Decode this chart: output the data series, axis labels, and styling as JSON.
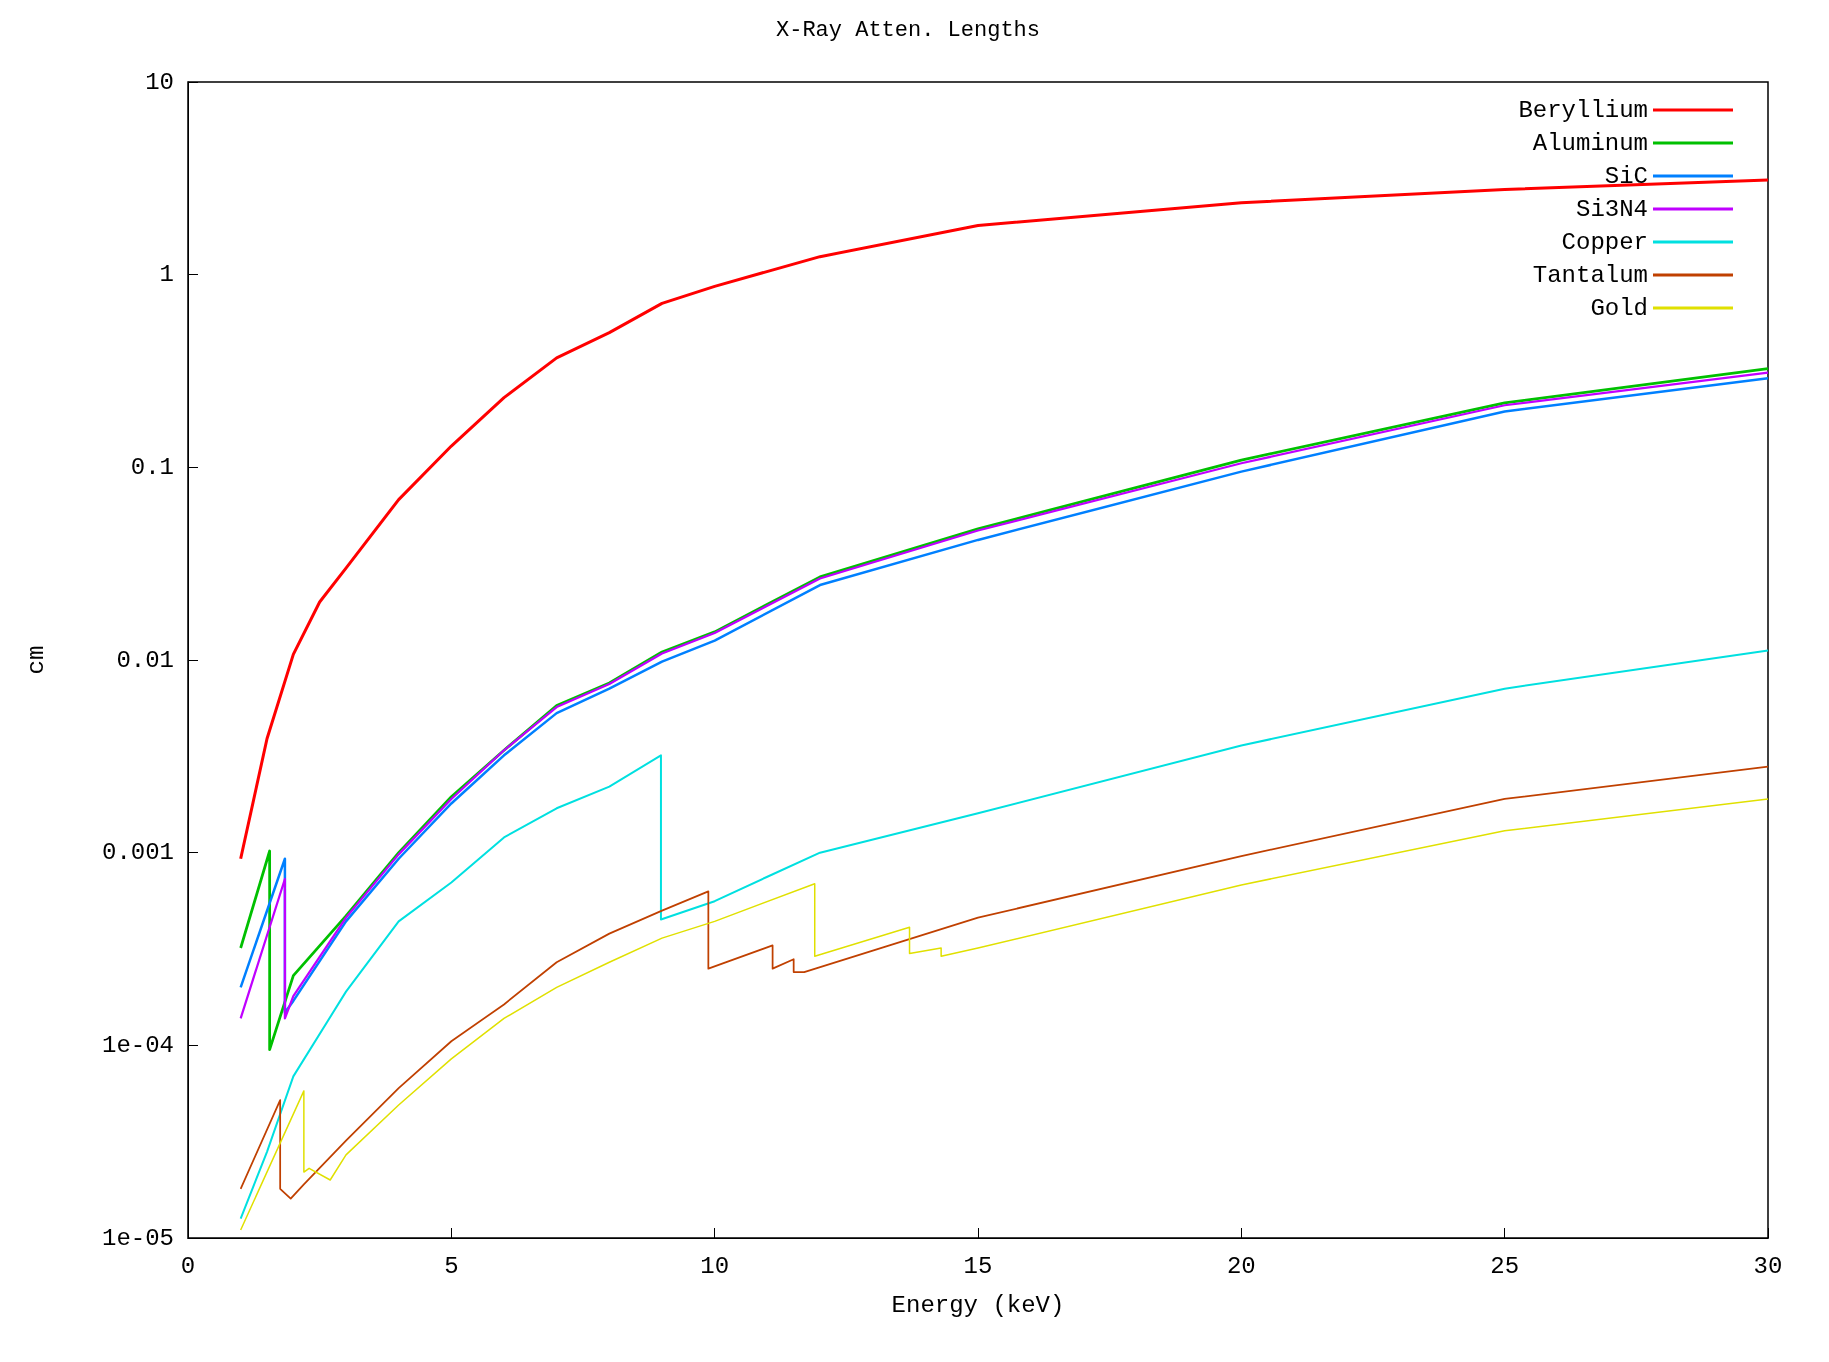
{
  "chart_data": {
    "type": "line",
    "title": "X-Ray Atten. Lengths",
    "xlabel": "Energy (keV)",
    "ylabel": "cm",
    "log": "y",
    "grid": false,
    "legend": "top right",
    "marker": "none",
    "line_style": "solid",
    "xlim": [
      0,
      30
    ],
    "xticks": [
      0,
      5,
      10,
      15,
      20,
      25,
      30
    ],
    "ylim": [
      1e-05,
      10
    ],
    "yticks": [
      {
        "value": 1e-05,
        "label": "1e-05"
      },
      {
        "value": 0.0001,
        "label": "1e-04"
      },
      0.001,
      0.01,
      0.1,
      1,
      10
    ],
    "series": [
      {
        "name": "Beryllium",
        "color": "#ff0000",
        "x": [
          1,
          1.5,
          2,
          2.5,
          3,
          4,
          5,
          6,
          7,
          8,
          9,
          10,
          12,
          15,
          20,
          25,
          30
        ],
        "values": [
          0.00093,
          0.0039,
          0.0107,
          0.02,
          0.03,
          0.068,
          0.129,
          0.23,
          0.37,
          0.5,
          0.71,
          0.87,
          1.24,
          1.8,
          2.36,
          2.77,
          3.1
        ]
      },
      {
        "name": "Aluminum",
        "color": "#00c000",
        "x": [
          1,
          1.55,
          1.55,
          2,
          3,
          4,
          5,
          6,
          7,
          8,
          9,
          10,
          12,
          15,
          20,
          25,
          30
        ],
        "values": [
          0.00032,
          0.00102,
          9.5e-05,
          0.00023,
          0.00047,
          0.001,
          0.00195,
          0.0034,
          0.0058,
          0.0076,
          0.011,
          0.014,
          0.027,
          0.048,
          0.109,
          0.216,
          0.325
        ]
      },
      {
        "name": "SiC",
        "color": "#0080ff",
        "x": [
          1,
          1.84,
          1.84,
          2,
          3,
          4,
          5,
          6,
          7,
          8,
          9,
          10,
          12,
          15,
          20,
          25,
          30
        ],
        "values": [
          0.0002,
          0.00093,
          0.000148,
          0.00017,
          0.00044,
          0.00093,
          0.0018,
          0.0032,
          0.0053,
          0.0071,
          0.0098,
          0.0126,
          0.0245,
          0.042,
          0.095,
          0.195,
          0.29
        ]
      },
      {
        "name": "Si3N4",
        "color": "#c000ff",
        "x": [
          1,
          1.84,
          1.84,
          2,
          3,
          4,
          5,
          6,
          7,
          8,
          9,
          10,
          12,
          15,
          20,
          25,
          30
        ],
        "values": [
          0.000138,
          0.00073,
          0.000138,
          0.00018,
          0.00046,
          0.00098,
          0.0019,
          0.0034,
          0.0057,
          0.0075,
          0.0108,
          0.0138,
          0.0265,
          0.047,
          0.105,
          0.21,
          0.31
        ]
      },
      {
        "name": "Copper",
        "color": "#00e0e0",
        "x": [
          1,
          1.5,
          2,
          3,
          4,
          5,
          6,
          7,
          8,
          8.98,
          8.98,
          10,
          11,
          12,
          15,
          20,
          25,
          30
        ],
        "values": [
          1.26e-05,
          2.8e-05,
          6.9e-05,
          0.00019,
          0.00044,
          0.0007,
          0.0012,
          0.0017,
          0.0022,
          0.0032,
          0.00045,
          0.00056,
          0.00075,
          0.001,
          0.0016,
          0.0036,
          0.0071,
          0.0112
        ]
      },
      {
        "name": "Tantalum",
        "color": "#c04000",
        "x": [
          1,
          1.75,
          1.75,
          1.95,
          2.2,
          3,
          4,
          5,
          6,
          7,
          8,
          9,
          9.88,
          9.88,
          11.1,
          11.1,
          11.5,
          11.5,
          11.7,
          15,
          20,
          25,
          30
        ],
        "values": [
          1.8e-05,
          5.2e-05,
          1.8e-05,
          1.6e-05,
          1.9e-05,
          3.2e-05,
          6e-05,
          0.000105,
          0.000163,
          0.00027,
          0.00038,
          0.0005,
          0.00063,
          0.00025,
          0.00033,
          0.00025,
          0.00028,
          0.00024,
          0.00024,
          0.00046,
          0.00096,
          0.0019,
          0.0028
        ]
      },
      {
        "name": "Gold",
        "color": "#e0e000",
        "x": [
          1,
          2.2,
          2.2,
          2.3,
          2.7,
          3,
          4,
          5,
          6,
          7,
          8,
          9,
          10,
          11.9,
          11.9,
          13.7,
          13.7,
          14.3,
          14.3,
          15,
          20,
          25,
          30
        ],
        "values": [
          1.1e-05,
          5.8e-05,
          2.2e-05,
          2.3e-05,
          2e-05,
          2.7e-05,
          4.9e-05,
          8.5e-05,
          0.000138,
          0.0002,
          0.00027,
          0.00036,
          0.00044,
          0.00069,
          0.00029,
          0.00041,
          0.0003,
          0.00032,
          0.00029,
          0.00032,
          0.00068,
          0.0013,
          0.0019
        ]
      }
    ]
  }
}
